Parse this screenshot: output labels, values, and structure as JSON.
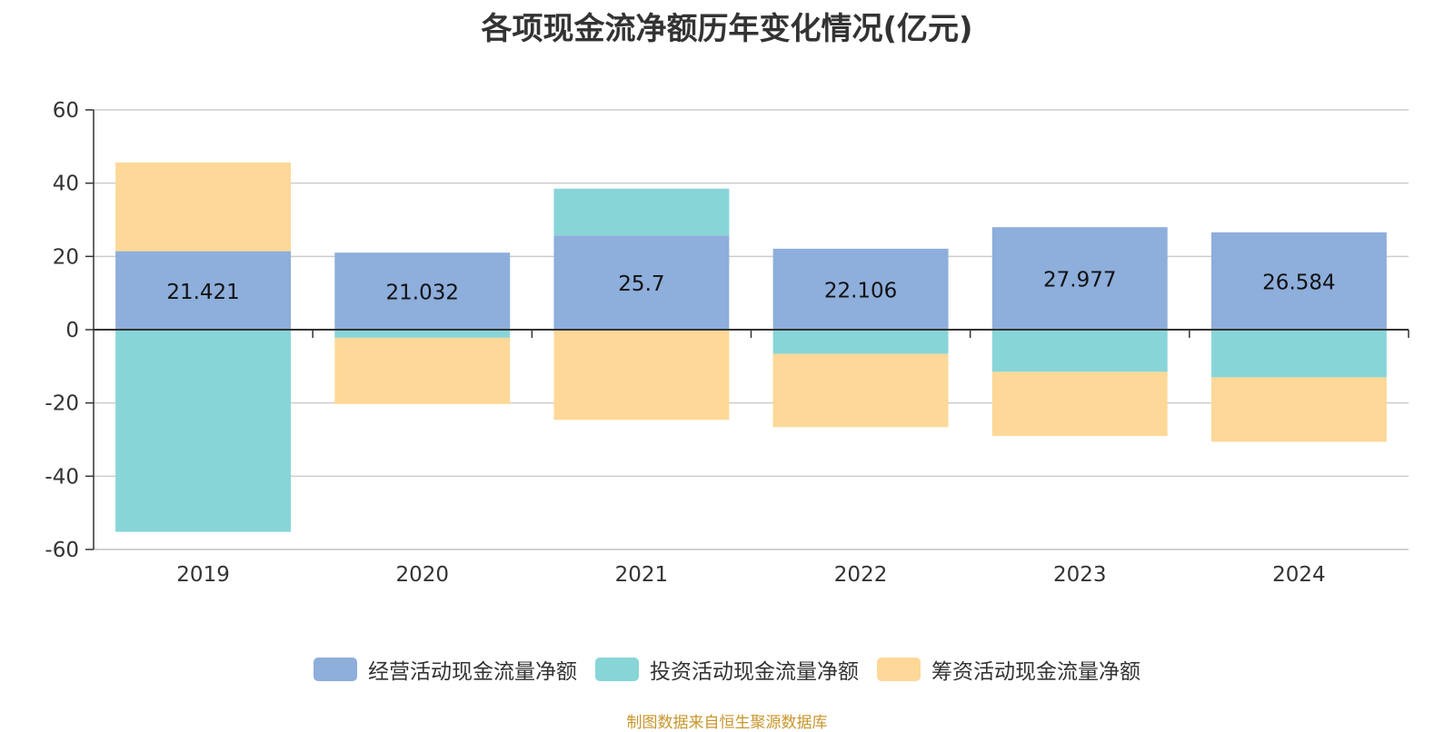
{
  "chart_data": {
    "type": "bar",
    "stacked": true,
    "title": "各项现金流净额历年变化情况(亿元)",
    "categories": [
      "2019",
      "2020",
      "2021",
      "2022",
      "2023",
      "2024"
    ],
    "ylim": [
      -60,
      60
    ],
    "yticks": [
      60,
      40,
      20,
      0,
      -20,
      -40,
      -60
    ],
    "grid": true,
    "legend_position": "bottom",
    "series": [
      {
        "name": "经营活动现金流量净额",
        "color": "#8eaedb",
        "values": [
          21.421,
          21.032,
          25.7,
          22.106,
          27.977,
          26.584
        ],
        "labels": [
          "21.421",
          "21.032",
          "25.7",
          "22.106",
          "27.977",
          "26.584"
        ]
      },
      {
        "name": "投资活动现金流量净额",
        "color": "#88d5d8",
        "values": [
          -55.2,
          -2.2,
          12.8,
          -6.6,
          -11.5,
          -13.0
        ]
      },
      {
        "name": "筹资活动现金流量净额",
        "color": "#fdd898",
        "values": [
          24.2,
          -18.1,
          -24.6,
          -20.0,
          -17.5,
          -17.6
        ]
      }
    ]
  },
  "source": "制图数据来自恒生聚源数据库"
}
